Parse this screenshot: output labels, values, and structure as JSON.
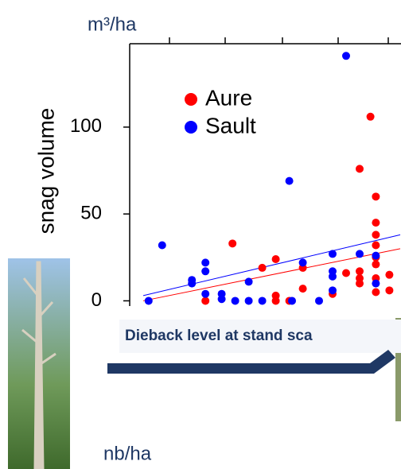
{
  "chart_data": {
    "type": "scatter",
    "y_unit_label": "m³/ha",
    "y_label": "snag volume",
    "xlim": [
      0,
      100
    ],
    "ylim": [
      -3,
      148
    ],
    "yticks": [
      0,
      50,
      100
    ],
    "series": [
      {
        "name": "Aure",
        "color": "#ff0000",
        "x": [
          89,
          85,
          91,
          91,
          91,
          91,
          38,
          91,
          54,
          49,
          64,
          91,
          85,
          80,
          96,
          91,
          85,
          85,
          64,
          96,
          91,
          75,
          54,
          54,
          59,
          28
        ],
        "values": [
          106,
          76,
          60,
          45,
          38,
          32,
          33,
          25,
          24,
          19,
          19,
          21,
          17,
          16,
          15,
          13,
          13,
          10,
          7,
          6,
          5,
          4,
          3,
          0,
          0,
          0
        ]
      },
      {
        "name": "Sault",
        "color": "#0000ff",
        "x": [
          7,
          12,
          23,
          23,
          28,
          28,
          28,
          34,
          34,
          39,
          44,
          44,
          49,
          59,
          60,
          64,
          70,
          75,
          75,
          75,
          75,
          80,
          85,
          91,
          91
        ],
        "values": [
          0,
          32,
          12,
          10,
          22,
          17,
          4,
          1,
          4,
          0,
          11,
          0,
          0,
          69,
          0,
          22,
          0,
          27,
          17,
          14,
          6,
          141,
          27,
          26,
          10
        ]
      }
    ],
    "trend_lines": [
      {
        "color": "#ff0000",
        "x": [
          5,
          100
        ],
        "values": [
          0,
          30
        ]
      },
      {
        "color": "#0000ff",
        "x": [
          5,
          100
        ],
        "values": [
          3,
          38
        ]
      }
    ]
  },
  "banner": "Dieback level at stand sca",
  "second_panel": {
    "y_unit_label": "nb/ha"
  }
}
